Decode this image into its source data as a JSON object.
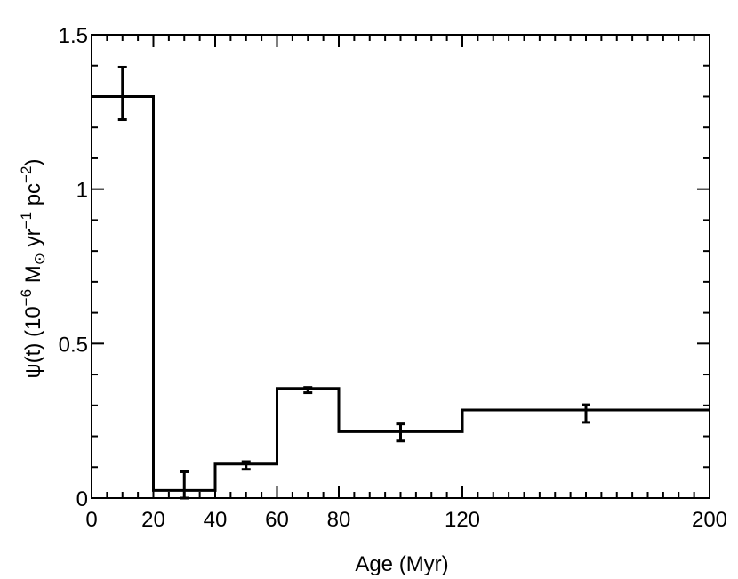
{
  "chart_data": {
    "type": "line",
    "xlabel": "Age (Myr)",
    "ylabel": "ψ(t) (10⁻⁶ M⊙ yr⁻¹ pc⁻²)",
    "ylabel_parts": {
      "prefix": "ψ(t) (10",
      "exp1": "−6",
      "msun": " M",
      "sun_symbol": "⊙",
      "yr": " yr",
      "exp2": "−1",
      "pc": " pc",
      "exp3": "−2",
      "suffix": ")"
    },
    "xlim": [
      0,
      200
    ],
    "ylim": [
      0,
      1.5
    ],
    "x_ticks": [
      0,
      20,
      40,
      60,
      80,
      120,
      200
    ],
    "x_tick_labels": [
      "0",
      "20",
      "40",
      "60",
      "80",
      "120",
      "200"
    ],
    "y_ticks": [
      0,
      0.5,
      1,
      1.5
    ],
    "y_tick_labels": [
      "0",
      "0.5",
      "1",
      "1.5"
    ],
    "grid": false,
    "legend": "none",
    "series": [
      {
        "bins": [
          {
            "x0": 0,
            "x1": 20,
            "y": 1.3
          },
          {
            "x0": 20,
            "x1": 40,
            "y": 0.025
          },
          {
            "x0": 40,
            "x1": 60,
            "y": 0.11
          },
          {
            "x0": 60,
            "x1": 80,
            "y": 0.355
          },
          {
            "x0": 80,
            "x1": 120,
            "y": 0.215
          },
          {
            "x0": 120,
            "x1": 200,
            "y": 0.285
          }
        ],
        "errors": [
          {
            "x": 10,
            "y": 1.31,
            "lo": 1.225,
            "hi": 1.395
          },
          {
            "x": 30,
            "y": 0.025,
            "lo": 0.0,
            "hi": 0.085
          },
          {
            "x": 50,
            "y": 0.105,
            "lo": 0.093,
            "hi": 0.118
          },
          {
            "x": 70,
            "y": 0.35,
            "lo": 0.341,
            "hi": 0.358
          },
          {
            "x": 100,
            "y": 0.21,
            "lo": 0.185,
            "hi": 0.24
          },
          {
            "x": 160,
            "y": 0.27,
            "lo": 0.245,
            "hi": 0.302
          }
        ]
      }
    ]
  }
}
